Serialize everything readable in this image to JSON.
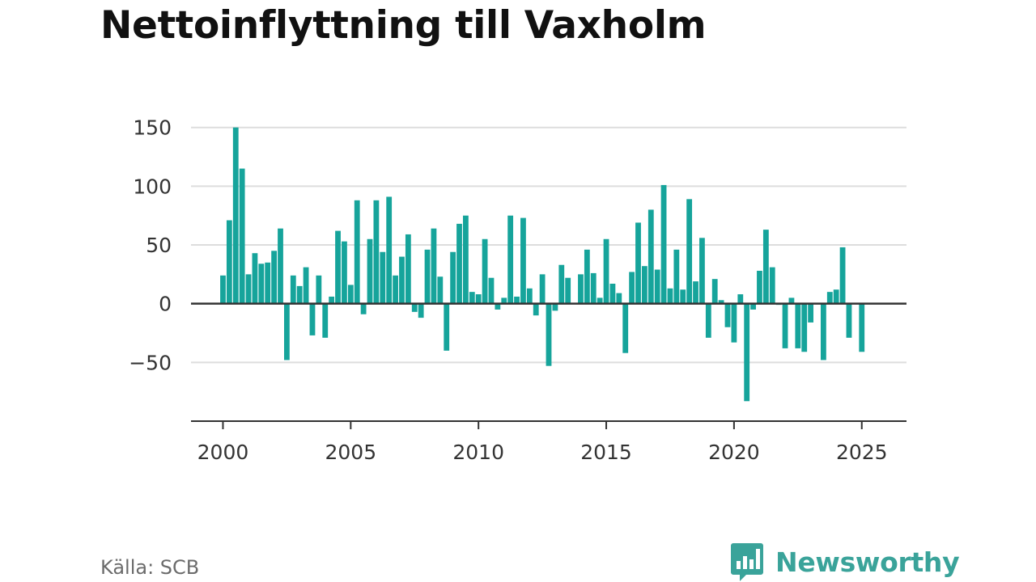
{
  "header": {
    "title": "Nettoinflyttning till Vaxholm"
  },
  "footer": {
    "source": "Källa: SCB",
    "brand": "Newsworthy"
  },
  "colors": {
    "bar": "#16a49b",
    "grid": "#dddddd",
    "axis": "#333333",
    "brand": "#3aa39a"
  },
  "icons": {
    "logo": "bar-chart-badge-icon"
  },
  "chart_data": {
    "type": "bar",
    "title": "Nettoinflyttning till Vaxholm",
    "xlabel": "",
    "ylabel": "",
    "grid": true,
    "ylim": [
      -100,
      150
    ],
    "xlim": [
      1998.75,
      2026.75
    ],
    "y_ticks": [
      {
        "value": -50,
        "label": "−50"
      },
      {
        "value": 0,
        "label": "0"
      },
      {
        "value": 50,
        "label": "50"
      },
      {
        "value": 100,
        "label": "100"
      },
      {
        "value": 150,
        "label": "150"
      }
    ],
    "x_ticks": [
      {
        "value": 2000,
        "label": "2000"
      },
      {
        "value": 2005,
        "label": "2005"
      },
      {
        "value": 2010,
        "label": "2010"
      },
      {
        "value": 2015,
        "label": "2015"
      },
      {
        "value": 2020,
        "label": "2020"
      },
      {
        "value": 2025,
        "label": "2025"
      }
    ],
    "series": [
      {
        "x": [
          "2000-Q1",
          "2000-Q2",
          "2000-Q3",
          "2000-Q4",
          "2001-Q1",
          "2001-Q2",
          "2001-Q3",
          "2001-Q4",
          "2002-Q1",
          "2002-Q2",
          "2002-Q3",
          "2002-Q4",
          "2003-Q1",
          "2003-Q2",
          "2003-Q3",
          "2003-Q4",
          "2004-Q1",
          "2004-Q2",
          "2004-Q3",
          "2004-Q4",
          "2005-Q1",
          "2005-Q2",
          "2005-Q3",
          "2005-Q4",
          "2006-Q1",
          "2006-Q2",
          "2006-Q3",
          "2006-Q4",
          "2007-Q1",
          "2007-Q2",
          "2007-Q3",
          "2007-Q4",
          "2008-Q1",
          "2008-Q2",
          "2008-Q3",
          "2008-Q4",
          "2009-Q1",
          "2009-Q2",
          "2009-Q3",
          "2009-Q4",
          "2010-Q1",
          "2010-Q2",
          "2010-Q3",
          "2010-Q4",
          "2011-Q1",
          "2011-Q2",
          "2011-Q3",
          "2011-Q4",
          "2012-Q1",
          "2012-Q2",
          "2012-Q3",
          "2012-Q4",
          "2013-Q1",
          "2013-Q2",
          "2013-Q3",
          "2013-Q4",
          "2014-Q1",
          "2014-Q2",
          "2014-Q3",
          "2014-Q4",
          "2015-Q1",
          "2015-Q2",
          "2015-Q3",
          "2015-Q4",
          "2016-Q1",
          "2016-Q2",
          "2016-Q3",
          "2016-Q4",
          "2017-Q1",
          "2017-Q2",
          "2017-Q3",
          "2017-Q4",
          "2018-Q1",
          "2018-Q2",
          "2018-Q3",
          "2018-Q4",
          "2019-Q1",
          "2019-Q2",
          "2019-Q3",
          "2019-Q4",
          "2020-Q1",
          "2020-Q2",
          "2020-Q3",
          "2020-Q4",
          "2021-Q1",
          "2021-Q2",
          "2021-Q3",
          "2021-Q4",
          "2022-Q1",
          "2022-Q2",
          "2022-Q3",
          "2022-Q4",
          "2023-Q1",
          "2023-Q2",
          "2023-Q3",
          "2023-Q4",
          "2024-Q1",
          "2024-Q2",
          "2024-Q3",
          "2024-Q4",
          "2025-Q1"
        ],
        "values": [
          24,
          71,
          150,
          115,
          25,
          43,
          34,
          35,
          45,
          64,
          -48,
          24,
          15,
          31,
          -27,
          24,
          -29,
          6,
          62,
          53,
          16,
          88,
          -9,
          55,
          88,
          44,
          91,
          24,
          40,
          59,
          -7,
          -12,
          46,
          64,
          23,
          -40,
          44,
          68,
          75,
          10,
          8,
          55,
          22,
          -5,
          5,
          75,
          6,
          73,
          13,
          -10,
          25,
          -53,
          -6,
          33,
          22,
          0,
          25,
          46,
          26,
          5,
          55,
          17,
          9,
          -42,
          27,
          69,
          32,
          80,
          29,
          101,
          13,
          46,
          12,
          89,
          19,
          56,
          -29,
          21,
          3,
          -20,
          -33,
          8,
          -83,
          -5,
          28,
          63,
          31,
          -1,
          -38,
          5,
          -38,
          -41,
          -16,
          0,
          -48,
          10,
          12,
          48,
          -29,
          0,
          -41
        ]
      }
    ]
  }
}
